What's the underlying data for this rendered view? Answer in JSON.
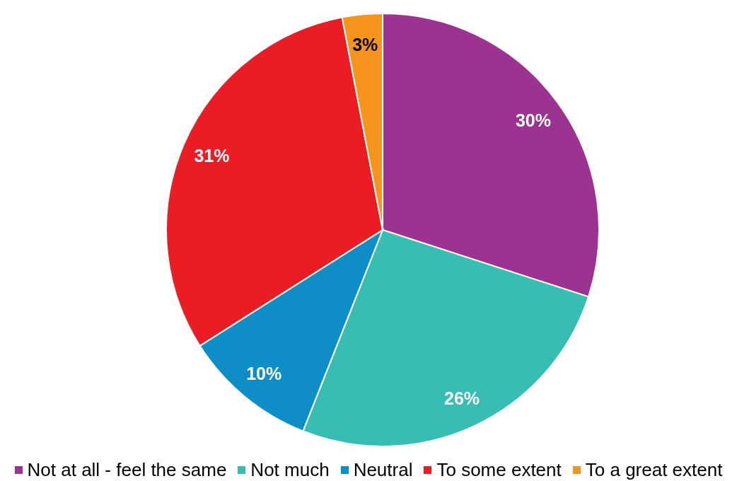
{
  "chart_data": {
    "type": "pie",
    "categories": [
      "Not at all - feel the same",
      "Not much",
      "Neutral",
      "To some extent",
      "To a great extent"
    ],
    "values": [
      30,
      26,
      10,
      31,
      3
    ],
    "colors": [
      "#9c3391",
      "#37bdb2",
      "#0e8ec6",
      "#ec1c24",
      "#f7941d"
    ],
    "value_labels": [
      "30%",
      "26%",
      "10%",
      "31%",
      "3%"
    ],
    "legend": "bottom"
  }
}
